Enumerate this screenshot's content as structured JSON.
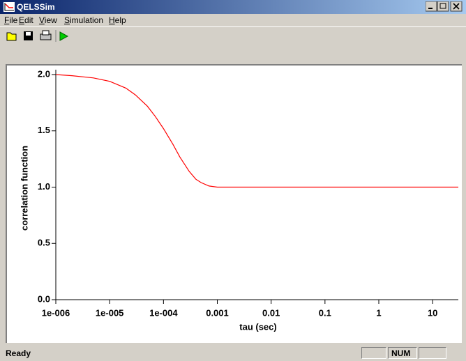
{
  "window": {
    "title": "QELSSim"
  },
  "menu": [
    "File",
    "Edit",
    "View",
    "Simulation",
    "Help"
  ],
  "status": {
    "text": "Ready",
    "num": "NUM"
  },
  "chart_data": {
    "type": "line",
    "xlabel": "tau (sec)",
    "ylabel": "correlation function",
    "log_x": true,
    "color": "#ff0000",
    "x": [
      1e-06,
      2e-06,
      5e-06,
      1e-05,
      2e-05,
      3e-05,
      5e-05,
      7e-05,
      0.0001,
      0.00015,
      0.0002,
      0.0003,
      0.0004,
      0.0005,
      0.0007,
      0.001,
      0.01,
      0.1,
      1,
      10,
      30
    ],
    "values": [
      2.0,
      1.99,
      1.97,
      1.94,
      1.88,
      1.82,
      1.72,
      1.63,
      1.52,
      1.38,
      1.27,
      1.14,
      1.07,
      1.04,
      1.01,
      1.0,
      1.0,
      1.0,
      1.0,
      1.0,
      1.0
    ],
    "xlim": [
      1e-06,
      30
    ],
    "ylim": [
      0,
      2
    ],
    "xticks": [
      {
        "value": 1e-06,
        "label": "1e-006"
      },
      {
        "value": 1e-05,
        "label": "1e-005"
      },
      {
        "value": 0.0001,
        "label": "1e-004"
      },
      0.001,
      0.01,
      0.1,
      1,
      10
    ],
    "yticks": [
      {
        "value": 0,
        "label": "0.0"
      },
      {
        "value": 0.5,
        "label": "0.5"
      },
      {
        "value": 1,
        "label": "1.0"
      },
      {
        "value": 1.5,
        "label": "1.5"
      },
      {
        "value": 2,
        "label": "2.0"
      }
    ]
  }
}
